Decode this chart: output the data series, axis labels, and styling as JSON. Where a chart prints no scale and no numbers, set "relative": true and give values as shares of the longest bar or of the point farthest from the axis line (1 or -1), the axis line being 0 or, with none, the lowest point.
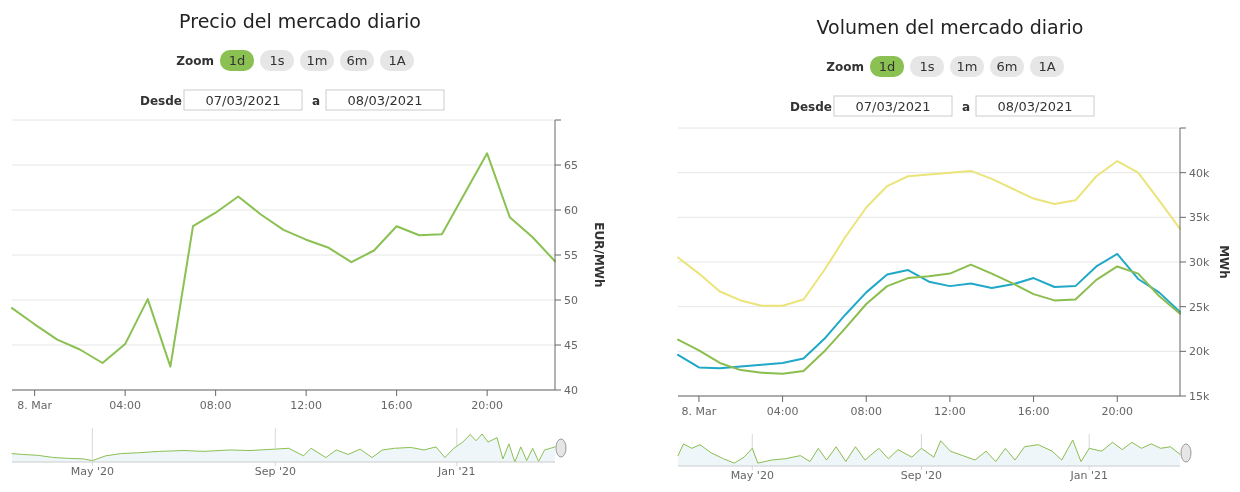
{
  "chart_data": [
    {
      "type": "line",
      "title": "Precio del mercado diario",
      "annotations": [
        "Zoom",
        "1d",
        "1s",
        "1m",
        "6m",
        "1A",
        "Desde",
        "07/03/2021",
        "a",
        "08/03/2021"
      ],
      "ylabel": "EUR/MWh",
      "x": [
        -1,
        0,
        1,
        2,
        3,
        4,
        5,
        6,
        7,
        8,
        9,
        10,
        11,
        12,
        13,
        14,
        15,
        16,
        17,
        18,
        19,
        20,
        21,
        22,
        23
      ],
      "xlim": [
        -1,
        23
      ],
      "xticks": [
        {
          "value": 0,
          "label": "8. Mar"
        },
        {
          "value": 4,
          "label": "04:00"
        },
        {
          "value": 8,
          "label": "08:00"
        },
        {
          "value": 12,
          "label": "12:00"
        },
        {
          "value": 16,
          "label": "16:00"
        },
        {
          "value": 20,
          "label": "20:00"
        }
      ],
      "ylim": [
        40,
        70
      ],
      "yticks": [
        40,
        45,
        50,
        55,
        60,
        65,
        {
          "value": 70,
          "label": null
        }
      ],
      "grid": "y",
      "series": [
        {
          "color": "#8bc052",
          "values": [
            49.1,
            47.3,
            45.6,
            44.5,
            43.0,
            45.1,
            50.1,
            42.6,
            58.2,
            59.7,
            61.5,
            59.5,
            57.8,
            56.7,
            55.8,
            54.2,
            55.5,
            58.2,
            57.2,
            57.3,
            61.8,
            66.3,
            59.2,
            57.0,
            54.3
          ]
        }
      ]
    },
    {
      "type": "line",
      "title": "Volumen del mercado diario",
      "annotations": [
        "Zoom",
        "1d",
        "1s",
        "1m",
        "6m",
        "1A",
        "Desde",
        "07/03/2021",
        "a",
        "08/03/2021"
      ],
      "ylabel": "MWh",
      "x": [
        -1,
        0,
        1,
        2,
        3,
        4,
        5,
        6,
        7,
        8,
        9,
        10,
        11,
        12,
        13,
        14,
        15,
        16,
        17,
        18,
        19,
        20,
        21,
        22,
        23
      ],
      "xlim": [
        -1,
        23
      ],
      "xticks": [
        {
          "value": 0,
          "label": "8. Mar"
        },
        {
          "value": 4,
          "label": "04:00"
        },
        {
          "value": 8,
          "label": "08:00"
        },
        {
          "value": 12,
          "label": "12:00"
        },
        {
          "value": 16,
          "label": "16:00"
        },
        {
          "value": 20,
          "label": "20:00"
        }
      ],
      "ylim": [
        15000,
        45000
      ],
      "yticks": [
        {
          "value": 15000,
          "label": "15k"
        },
        {
          "value": 20000,
          "label": "20k"
        },
        {
          "value": 25000,
          "label": "25k"
        },
        {
          "value": 30000,
          "label": "30k"
        },
        {
          "value": 35000,
          "label": "35k"
        },
        {
          "value": 40000,
          "label": "40k"
        },
        {
          "value": 45000,
          "label": null
        }
      ],
      "grid": "y",
      "series": [
        {
          "color": "#ebe47a",
          "values": [
            30500,
            28700,
            26700,
            25700,
            25100,
            25100,
            25800,
            29100,
            32800,
            36100,
            38500,
            39600,
            39800,
            40000,
            40200,
            39300,
            38200,
            37100,
            36500,
            36900,
            39600,
            41300,
            40000,
            36900,
            33700
          ]
        },
        {
          "color": "#1fa8c8",
          "values": [
            19600,
            18200,
            18100,
            18300,
            18500,
            18700,
            19200,
            21400,
            24100,
            26600,
            28600,
            29100,
            27800,
            27300,
            27600,
            27100,
            27500,
            28200,
            27200,
            27300,
            29500,
            30900,
            28100,
            26600,
            24400
          ]
        },
        {
          "color": "#8bbd4f",
          "values": [
            21300,
            20100,
            18700,
            17900,
            17600,
            17500,
            17800,
            20000,
            22600,
            25300,
            27300,
            28200,
            28400,
            28700,
            29700,
            28700,
            27600,
            26400,
            25700,
            25800,
            28000,
            29500,
            28700,
            26200,
            24200
          ]
        }
      ]
    },
    {
      "type": "area",
      "relative": true,
      "tick_labels": "x",
      "grid": "x",
      "xlim": [
        "2020-03-08",
        "2021-03-08"
      ],
      "xticks": [
        {
          "value": "2020-05-01",
          "label": "May '20"
        },
        {
          "value": "2020-09-01",
          "label": "Sep '20"
        },
        {
          "value": "2021-01-01",
          "label": "Jan '21"
        }
      ],
      "x": [
        "2020-03-08",
        "2020-03-15",
        "2020-03-25",
        "2020-04-05",
        "2020-04-15",
        "2020-04-25",
        "2020-05-01",
        "2020-05-10",
        "2020-05-20",
        "2020-06-01",
        "2020-06-15",
        "2020-07-01",
        "2020-07-15",
        "2020-08-01",
        "2020-08-15",
        "2020-09-01",
        "2020-09-10",
        "2020-09-20",
        "2020-09-25",
        "2020-10-05",
        "2020-10-12",
        "2020-10-20",
        "2020-10-28",
        "2020-11-05",
        "2020-11-12",
        "2020-11-20",
        "2020-12-01",
        "2020-12-10",
        "2020-12-18",
        "2020-12-24",
        "2020-12-30",
        "2021-01-05",
        "2021-01-10",
        "2021-01-14",
        "2021-01-18",
        "2021-01-22",
        "2021-01-28",
        "2021-02-01",
        "2021-02-05",
        "2021-02-09",
        "2021-02-13",
        "2021-02-17",
        "2021-02-21",
        "2021-02-25",
        "2021-03-01",
        "2021-03-05",
        "2021-03-08"
      ],
      "series": [
        {
          "color": "#8bc052",
          "values": [
            0.3,
            0.27,
            0.24,
            0.16,
            0.13,
            0.11,
            0.05,
            0.22,
            0.3,
            0.33,
            0.38,
            0.41,
            0.38,
            0.43,
            0.41,
            0.46,
            0.49,
            0.22,
            0.49,
            0.16,
            0.43,
            0.27,
            0.46,
            0.16,
            0.43,
            0.49,
            0.52,
            0.43,
            0.54,
            0.16,
            0.49,
            0.71,
            0.98,
            0.76,
            1,
            0.71,
            0.87,
            0.11,
            0.65,
            0,
            0.54,
            0.05,
            0.49,
            0.02,
            0.43,
            0.49,
            0.54
          ]
        }
      ]
    },
    {
      "type": "area",
      "relative": true,
      "tick_labels": "x",
      "grid": "x",
      "xlim": [
        "2020-03-08",
        "2021-03-08"
      ],
      "xticks": [
        {
          "value": "2020-05-01",
          "label": "May '20"
        },
        {
          "value": "2020-09-01",
          "label": "Sep '20"
        },
        {
          "value": "2021-01-01",
          "label": "Jan '21"
        }
      ],
      "x": [
        "2020-03-08",
        "2020-03-12",
        "2020-03-18",
        "2020-03-24",
        "2020-04-01",
        "2020-04-10",
        "2020-04-18",
        "2020-04-25",
        "2020-05-01",
        "2020-05-05",
        "2020-05-15",
        "2020-05-25",
        "2020-06-05",
        "2020-06-12",
        "2020-06-18",
        "2020-06-24",
        "2020-07-01",
        "2020-07-08",
        "2020-07-15",
        "2020-07-22",
        "2020-08-01",
        "2020-08-08",
        "2020-08-15",
        "2020-08-25",
        "2020-09-01",
        "2020-09-10",
        "2020-09-15",
        "2020-09-22",
        "2020-10-01",
        "2020-10-10",
        "2020-10-18",
        "2020-10-25",
        "2020-11-01",
        "2020-11-08",
        "2020-11-15",
        "2020-11-25",
        "2020-12-05",
        "2020-12-12",
        "2020-12-20",
        "2020-12-26",
        "2021-01-01",
        "2021-01-10",
        "2021-01-18",
        "2021-01-25",
        "2021-02-01",
        "2021-02-08",
        "2021-02-15",
        "2021-02-22",
        "2021-03-01",
        "2021-03-08"
      ],
      "series": [
        {
          "color": "#8bbd4f",
          "values": [
            0.4,
            0.85,
            0.68,
            0.82,
            0.51,
            0.28,
            0.11,
            0.34,
            0.68,
            0.11,
            0.23,
            0.28,
            0.4,
            0.17,
            0.68,
            0.23,
            0.74,
            0.17,
            0.74,
            0.23,
            0.68,
            0.28,
            0.63,
            0.34,
            0.68,
            0.34,
            0.97,
            0.57,
            0.4,
            0.23,
            0.57,
            0.17,
            0.68,
            0.23,
            0.74,
            0.82,
            0.57,
            0.23,
            1,
            0.17,
            0.68,
            0.57,
            0.91,
            0.63,
            0.91,
            0.68,
            0.85,
            0.68,
            0.74,
            0.45
          ]
        }
      ]
    }
  ]
}
